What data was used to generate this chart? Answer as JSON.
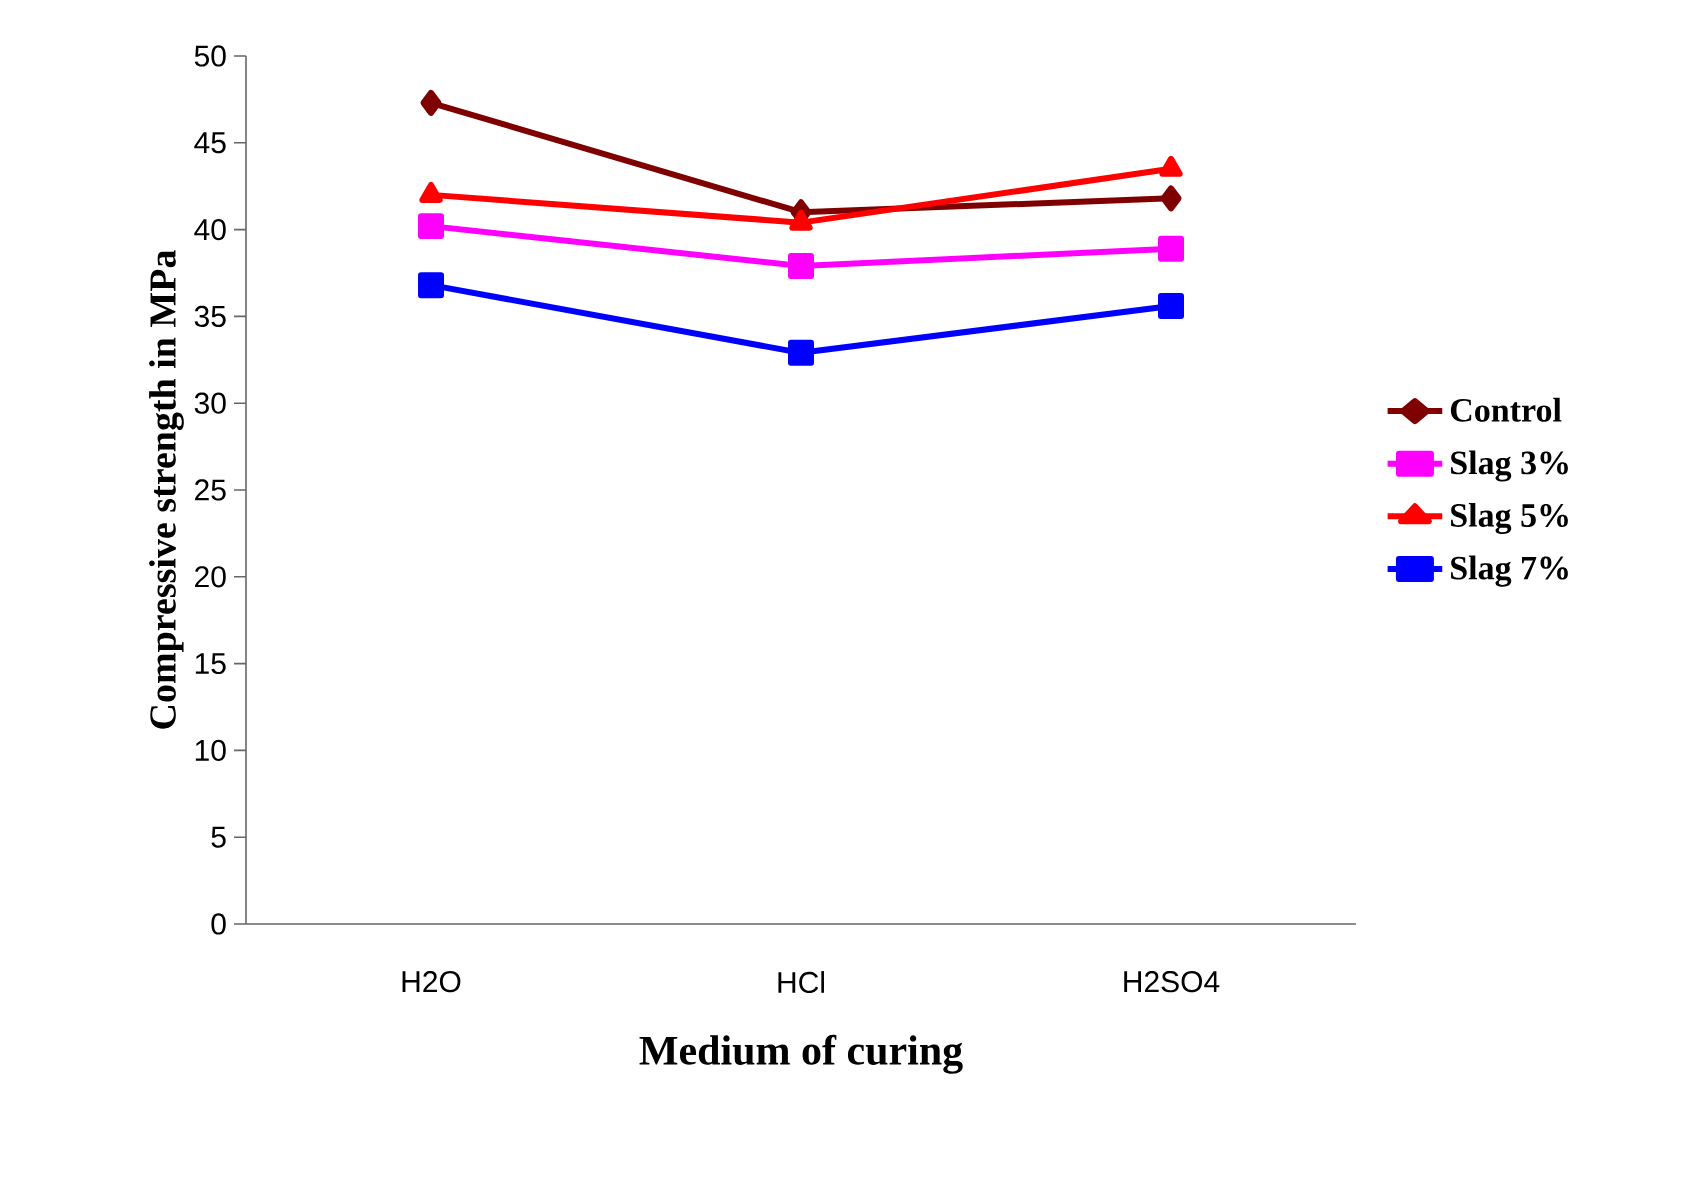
{
  "chart_data": {
    "type": "line",
    "xlabel": "Medium of curing",
    "ylabel": "Compressive strength in MPa",
    "categories": [
      "H2O",
      "HCl",
      "H2SO4"
    ],
    "series": [
      {
        "name": "Control",
        "color": "#7f0000",
        "marker": "diamond",
        "values": [
          47.3,
          41.0,
          41.8
        ]
      },
      {
        "name": "Slag 3%",
        "color": "#ff00ff",
        "marker": "square",
        "values": [
          40.2,
          37.9,
          38.9
        ]
      },
      {
        "name": "Slag 5%",
        "color": "#ff0000",
        "marker": "triangle",
        "values": [
          42.0,
          40.4,
          43.5
        ]
      },
      {
        "name": "Slag 7%",
        "color": "#0000ff",
        "marker": "square",
        "values": [
          36.8,
          32.9,
          35.6
        ]
      }
    ],
    "ylim": [
      0,
      50
    ],
    "yticks": [
      0,
      5,
      10,
      15,
      20,
      25,
      30,
      35,
      40,
      45,
      50
    ],
    "grid": false,
    "legend": "right",
    "line_style": "solid"
  }
}
